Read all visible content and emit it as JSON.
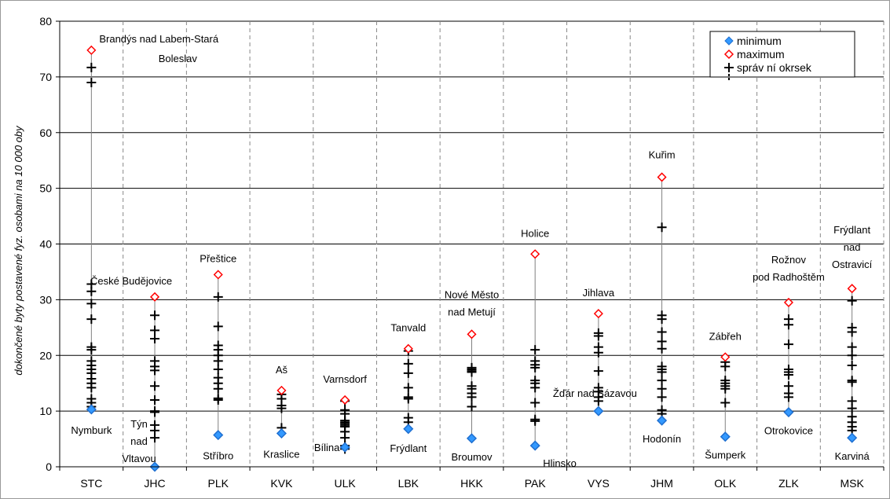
{
  "chart_data": {
    "type": "scatter",
    "ylabel": "dokončené byty postavené fyz. osobami na 10 000 oby",
    "ylim": [
      0,
      80
    ],
    "yticks": [
      0,
      10,
      20,
      30,
      40,
      50,
      60,
      70,
      80
    ],
    "grid": {
      "horizontal": "solid",
      "vertical": "dashed"
    },
    "legend_position": "top-right",
    "legend": [
      {
        "name": "minimum",
        "marker": "diamond-filled",
        "color": "#3399ff"
      },
      {
        "name": "maximum",
        "marker": "diamond-open",
        "color": "#ff0000"
      },
      {
        "name": "správ ní okrsek",
        "marker": "plus",
        "color": "#000000"
      }
    ],
    "categories": [
      "STC",
      "JHC",
      "PLK",
      "KVK",
      "ULK",
      "LBK",
      "HKK",
      "PAK",
      "VYS",
      "JHM",
      "OLK",
      "ZLK",
      "MSK"
    ],
    "regions": [
      {
        "code": "STC",
        "min": 10.3,
        "min_label": [
          "Nymburk"
        ],
        "max": 74.8,
        "max_label": [
          "Brandýs nad Labem-Stará",
          "Boleslav"
        ],
        "districts": [
          71.7,
          69,
          32.8,
          31.5,
          29.3,
          26.5,
          21.5,
          21,
          19,
          18.2,
          17.5,
          16.8,
          15.8,
          15,
          14.2,
          12.2,
          11.5,
          10.8
        ]
      },
      {
        "code": "JHC",
        "min": 0,
        "min_label": [
          "Týn",
          "nad",
          "Vltavou"
        ],
        "max": 30.5,
        "max_label": [
          "České Budějovice"
        ],
        "districts": [
          27.2,
          24.5,
          23,
          19,
          18,
          17.3,
          14.5,
          12,
          10,
          9.8,
          7.5,
          6.5,
          5.2
        ]
      },
      {
        "code": "PLK",
        "min": 5.7,
        "min_label": [
          "Stříbro"
        ],
        "max": 34.5,
        "max_label": [
          "Přeštice"
        ],
        "districts": [
          30.5,
          25.2,
          21.8,
          21,
          20,
          19,
          17.5,
          16,
          15,
          14,
          12.3,
          12
        ]
      },
      {
        "code": "KVK",
        "min": 6,
        "min_label": [
          "Kraslice"
        ],
        "max": 13.7,
        "max_label": [
          "Aš"
        ],
        "districts": [
          13,
          12.2,
          11,
          10.5,
          7
        ]
      },
      {
        "code": "ULK",
        "min": 3.5,
        "min_label": [
          "Bílina"
        ],
        "max": 12,
        "max_label": [
          "Varnsdorf"
        ],
        "districts": [
          11.8,
          10.2,
          9.5,
          8.3,
          8,
          7.8,
          7.5,
          7.2,
          6.3,
          5.2,
          3.8,
          3.2
        ]
      },
      {
        "code": "LBK",
        "min": 6.8,
        "min_label": [
          "Frýdlant"
        ],
        "max": 21.2,
        "max_label": [
          "Tanvald"
        ],
        "districts": [
          20.8,
          18.5,
          16.8,
          14.2,
          12.5,
          12.2,
          8.8,
          8
        ]
      },
      {
        "code": "HKK",
        "min": 5.1,
        "min_label": [
          "Broumov"
        ],
        "max": 23.8,
        "max_label": [
          "Nové Město",
          "nad Metují"
        ],
        "districts": [
          17.8,
          17.5,
          17.2,
          17,
          14.5,
          14,
          13.2,
          12.5,
          10.8
        ]
      },
      {
        "code": "PAK",
        "min": 3.8,
        "min_label": [
          "Hlinsko"
        ],
        "max": 38.2,
        "max_label": [
          "Holice"
        ],
        "districts": [
          21,
          19,
          18.3,
          17.8,
          15.5,
          15,
          14.2,
          11.5,
          8.5,
          8.2
        ]
      },
      {
        "code": "VYS",
        "min": 10,
        "min_label": [
          "Žďár nad Sázavou"
        ],
        "max": 27.5,
        "max_label": [
          "Jihlava"
        ],
        "districts": [
          24,
          23.5,
          21.5,
          20.5,
          17.2,
          14.2,
          13.5,
          12.5,
          11.8
        ]
      },
      {
        "code": "JHM",
        "min": 8.3,
        "min_label": [
          "Hodonín"
        ],
        "max": 52,
        "max_label": [
          "Kuřim"
        ],
        "districts": [
          43,
          27.2,
          26.5,
          24.2,
          22.5,
          21.2,
          18,
          17.5,
          17,
          15.5,
          14,
          12.5,
          10.2,
          9.5
        ]
      },
      {
        "code": "OLK",
        "min": 5.4,
        "min_label": [
          "Šumperk"
        ],
        "max": 19.7,
        "max_label": [
          "Zábřeh"
        ],
        "districts": [
          18.8,
          18,
          15.5,
          15,
          14.5,
          14,
          11.5
        ]
      },
      {
        "code": "ZLK",
        "min": 9.8,
        "min_label": [
          "Otrokovice"
        ],
        "max": 29.5,
        "max_label": [
          "Rožnov",
          "pod Radhoštěm"
        ],
        "districts": [
          26.5,
          25.5,
          22,
          17.5,
          17,
          16.5,
          14.5,
          13.2,
          12.5
        ]
      },
      {
        "code": "MSK",
        "min": 5.2,
        "min_label": [
          "Karviná"
        ],
        "max": 32,
        "max_label": [
          "Frýdlant",
          "nad",
          "Ostravicí"
        ],
        "districts": [
          29.8,
          25,
          24.2,
          21.5,
          20,
          18.2,
          15.5,
          15.2,
          11.8,
          10.5,
          9,
          8,
          7.2,
          6.5
        ]
      }
    ]
  }
}
